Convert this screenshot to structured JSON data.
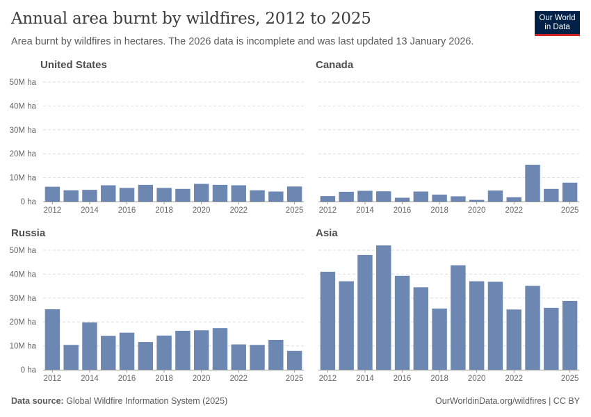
{
  "header": {
    "title": "Annual area burnt by wildfires, 2012 to 2025",
    "subtitle": "Area burnt by wildfires in hectares. The 2026 data is incomplete and was last updated 13 January 2026.",
    "logo_line1": "Our World",
    "logo_line2": "in Data"
  },
  "footer": {
    "source_label": "Data source:",
    "source_text": "Global Wildfire Information System (2025)",
    "credit": "OurWorldinData.org/wildfires | CC BY"
  },
  "colors": {
    "bar": "#6d87b3",
    "grid": "#dddddd",
    "axis": "#999999"
  },
  "chart_data": [
    {
      "type": "bar",
      "title": "United States",
      "x": [
        2012,
        2013,
        2014,
        2015,
        2016,
        2017,
        2018,
        2019,
        2020,
        2021,
        2022,
        2023,
        2024,
        2025
      ],
      "values": [
        6.2,
        4.7,
        4.9,
        6.8,
        5.7,
        7.0,
        5.7,
        5.3,
        7.4,
        7.0,
        6.8,
        4.7,
        4.2,
        6.3
      ],
      "unit": "M ha",
      "xticks": [
        "2012",
        "2014",
        "2016",
        "2018",
        "2020",
        "2022",
        "2025"
      ],
      "yticks": [
        "0 ha",
        "10M ha",
        "20M ha",
        "30M ha",
        "40M ha",
        "50M ha"
      ],
      "ylim": [
        0,
        50
      ],
      "grid": true
    },
    {
      "type": "bar",
      "title": "Canada",
      "x": [
        2012,
        2013,
        2014,
        2015,
        2016,
        2017,
        2018,
        2019,
        2020,
        2021,
        2022,
        2023,
        2024,
        2025
      ],
      "values": [
        2.3,
        4.1,
        4.5,
        4.3,
        1.6,
        4.2,
        2.9,
        2.2,
        0.7,
        4.6,
        1.8,
        15.4,
        5.3,
        7.9
      ],
      "unit": "M ha",
      "xticks": [
        "2012",
        "2014",
        "2016",
        "2018",
        "2020",
        "2022",
        "2025"
      ],
      "yticks": [],
      "ylim": [
        0,
        50
      ],
      "grid": true
    },
    {
      "type": "bar",
      "title": "Russia",
      "x": [
        2012,
        2013,
        2014,
        2015,
        2016,
        2017,
        2018,
        2019,
        2020,
        2021,
        2022,
        2023,
        2024,
        2025
      ],
      "values": [
        25.3,
        10.4,
        19.8,
        14.2,
        15.5,
        11.6,
        14.3,
        16.3,
        16.5,
        17.4,
        10.6,
        10.4,
        12.5,
        7.9
      ],
      "unit": "M ha",
      "xticks": [
        "2012",
        "2014",
        "2016",
        "2018",
        "2020",
        "2022",
        "2025"
      ],
      "yticks": [
        "0 ha",
        "10M ha",
        "20M ha",
        "30M ha",
        "40M ha",
        "50M ha"
      ],
      "ylim": [
        0,
        50
      ],
      "grid": true
    },
    {
      "type": "bar",
      "title": "Asia",
      "x": [
        2012,
        2013,
        2014,
        2015,
        2016,
        2017,
        2018,
        2019,
        2020,
        2021,
        2022,
        2023,
        2024,
        2025
      ],
      "values": [
        41.0,
        37.0,
        48.0,
        52.0,
        39.3,
        34.5,
        25.6,
        43.7,
        37.0,
        36.8,
        25.2,
        35.1,
        25.9,
        28.8
      ],
      "unit": "M ha",
      "xticks": [
        "2012",
        "2014",
        "2016",
        "2018",
        "2020",
        "2022",
        "2025"
      ],
      "yticks": [],
      "ylim": [
        0,
        50
      ],
      "grid": true
    }
  ]
}
